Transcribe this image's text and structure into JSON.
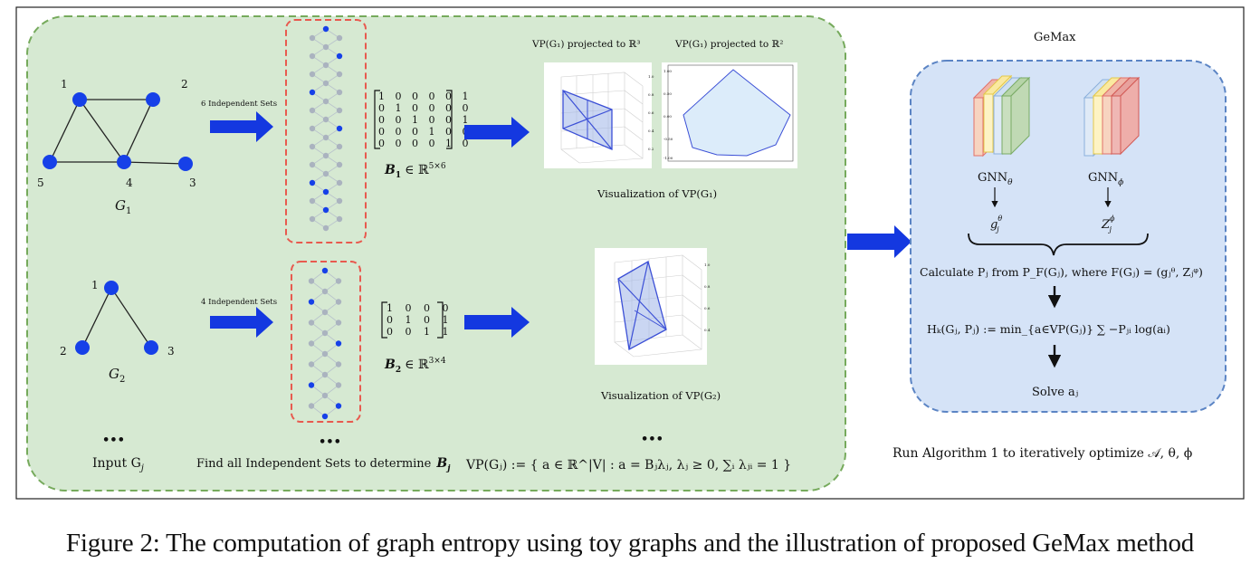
{
  "graphs": {
    "g1": {
      "name": "G",
      "sub": "1",
      "nodes": [
        {
          "label": "1"
        },
        {
          "label": "2"
        },
        {
          "label": "3"
        },
        {
          "label": "4"
        },
        {
          "label": "5"
        }
      ]
    },
    "g2": {
      "name": "G",
      "sub": "2",
      "nodes": [
        {
          "label": "1"
        },
        {
          "label": "2"
        },
        {
          "label": "3"
        }
      ]
    },
    "input_label": "Input G",
    "input_sub": "j"
  },
  "independent_sets": {
    "g1_label": "6 Independent Sets",
    "g2_label": "4 Independent Sets",
    "find_label": "Find all Independent Sets to determine",
    "find_symbol": "B",
    "find_sub": "j"
  },
  "matrices": {
    "b1": {
      "rows": [
        "1 0 0 0 0 1",
        "0 1 0 0 0 0",
        "0 0 1 0 0 1",
        "0 0 0 1 0 0",
        "0 0 0 0 1 0"
      ],
      "symbol": "B",
      "sub": "1",
      "space": "∈ ℝ",
      "dims": "5×6"
    },
    "b2": {
      "rows": [
        "1 0 0 0",
        "0 1 0 1",
        "0 0 1 1"
      ],
      "symbol": "B",
      "sub": "2",
      "space": "∈ ℝ",
      "dims": "3×4"
    }
  },
  "visualization": {
    "title_3d": "VP(G₁) projected to ℝ³",
    "title_2d": "VP(G₁) projected to ℝ²",
    "vis1": "Visualization of VP(G₁)",
    "vis2": "Visualization of VP(G₂)",
    "polytope_def": "VP(Gⱼ) := { a ∈ ℝ^|V| : a = Bⱼλⱼ, λⱼ ≥ 0, ∑ᵢ λⱼᵢ = 1 }",
    "fill_color": "#dcecfa",
    "edge_color": "#3b4fd6"
  },
  "gemax": {
    "title": "GeMax",
    "gnn_theta": "GNN",
    "gnn_theta_sub": "θ",
    "gnn_phi": "GNN",
    "gnn_phi_sub": "ϕ",
    "g_out": "g",
    "g_out_sup": "θ",
    "g_out_sub": "j",
    "z_out": "Z",
    "z_out_sup": "ϕ",
    "z_out_sub": "j",
    "calc": "Calculate Pⱼ from P_F(Gⱼ), where F(Gⱼ) = (gⱼᶿ, Zⱼᵠ)",
    "hk": "Hₖ(Gⱼ, Pⱼ) := min_{a∈VP(Gⱼ)} ∑ −Pⱼᵢ log(aᵢ)",
    "solve": "Solve aⱼ",
    "run": "Run Algorithm 1 to  iteratively optimize 𝒜, θ, ϕ"
  },
  "ellipsis": "•••",
  "caption": "Figure 2: The computation of graph entropy using toy graphs and the illustration of proposed GeMax method",
  "colors": {
    "panel_green": "#d6e9d2",
    "panel_green_border": "#76aa5c",
    "panel_blue": "#d5e3f7",
    "panel_blue_border": "#5b84c4",
    "arrow_blue": "#1438e0",
    "node_blue": "#1640e8",
    "red_dash": "#e85a4f"
  }
}
